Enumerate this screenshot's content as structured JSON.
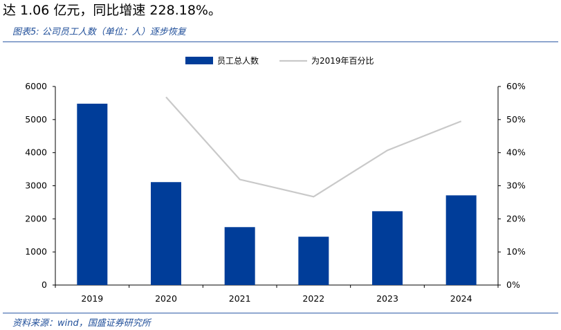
{
  "intro_text": "达 1.06 亿元，同比增速 228.18%。",
  "figure_title": "图表5:  公司员工人数（单位：人）逐步恢复",
  "source_text": "资料来源：wind，国盛证券研究所",
  "colors": {
    "bar": "#003d99",
    "line": "#c9c9c9",
    "title": "#1f4e99",
    "rule": "#2e5aa6"
  },
  "chart_data": {
    "type": "bar",
    "categories": [
      "2019",
      "2020",
      "2021",
      "2022",
      "2023",
      "2024"
    ],
    "series": [
      {
        "name": "员工总人数",
        "type": "bar",
        "axis": "left",
        "values": [
          5480,
          3110,
          1750,
          1460,
          2230,
          2710
        ]
      },
      {
        "name": "为2019年百分比",
        "type": "line",
        "axis": "right",
        "values": [
          null,
          56.8,
          31.9,
          26.7,
          40.7,
          49.5
        ]
      }
    ],
    "yticks_left": [
      "0",
      "1000",
      "2000",
      "3000",
      "4000",
      "5000",
      "6000"
    ],
    "yticks_right": [
      "0%",
      "10%",
      "20%",
      "30%",
      "40%",
      "50%",
      "60%"
    ],
    "ylim_left": [
      0,
      6000
    ],
    "ylim_right": [
      0,
      60
    ],
    "grid": false,
    "legend_position": "top-center"
  }
}
